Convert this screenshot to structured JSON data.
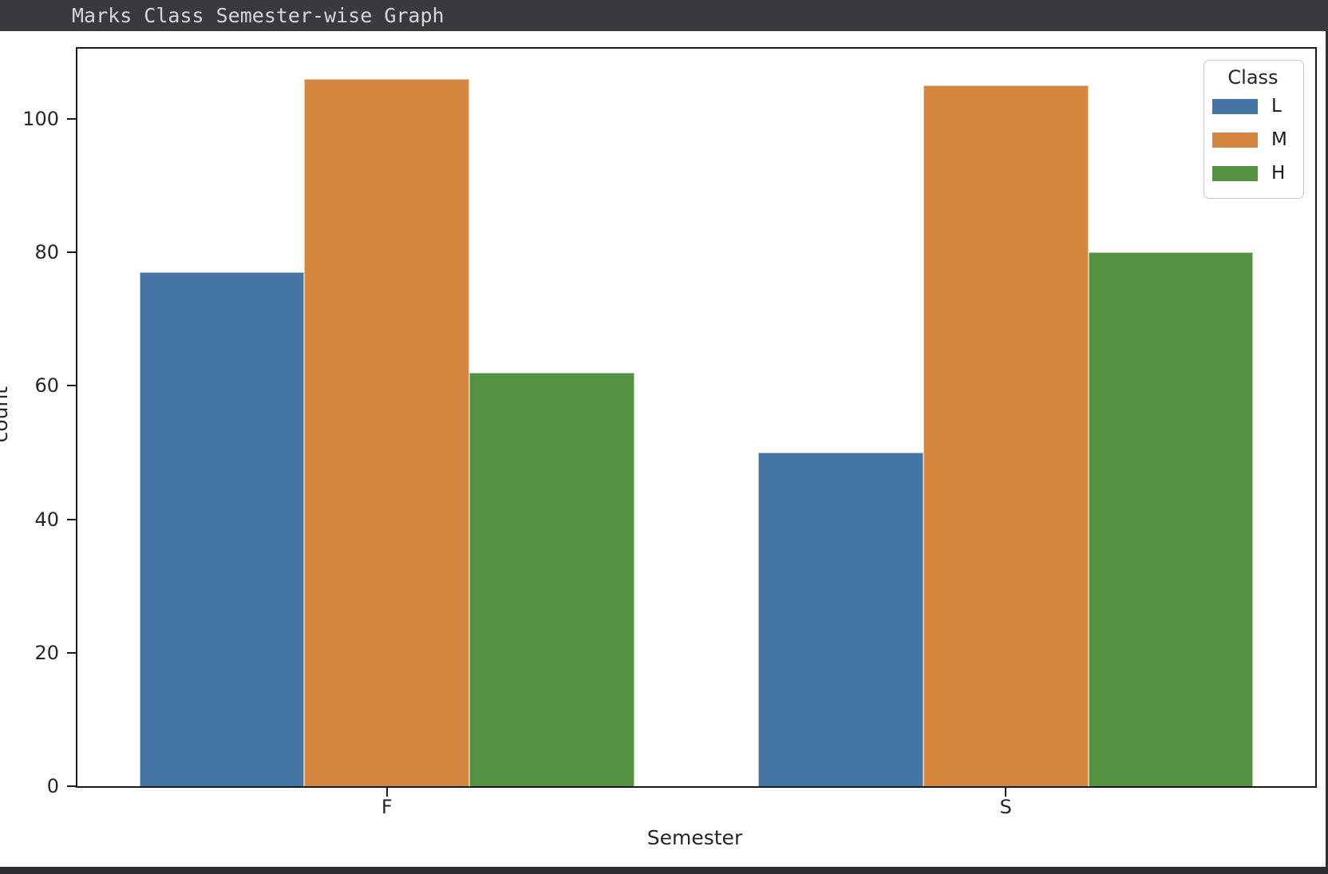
{
  "window": {
    "title": "Marks Class Semester-wise Graph"
  },
  "chart_data": {
    "type": "bar",
    "title": "",
    "xlabel": "Semester",
    "ylabel": "count",
    "categories": [
      "F",
      "S"
    ],
    "series": [
      {
        "name": "L",
        "color": "#4475A4",
        "values": [
          77,
          50
        ]
      },
      {
        "name": "M",
        "color": "#D5863F",
        "values": [
          106,
          105
        ]
      },
      {
        "name": "H",
        "color": "#549140",
        "values": [
          62,
          80
        ]
      }
    ],
    "yticks": [
      0,
      20,
      40,
      60,
      80,
      100
    ],
    "ylim": [
      0,
      110.5
    ],
    "grid": false,
    "bar_group_width": 0.8,
    "legend": {
      "title": "Class",
      "position": "upper-right"
    }
  },
  "colors": {
    "titlebar_bg": "#3A3A3C",
    "titlebar_text": "#D6D6D6",
    "window_bg": "#2E2E30",
    "figure_bg": "#FFFFFF",
    "axis": "#1A1A1A",
    "tick_label_text": "#262626"
  }
}
